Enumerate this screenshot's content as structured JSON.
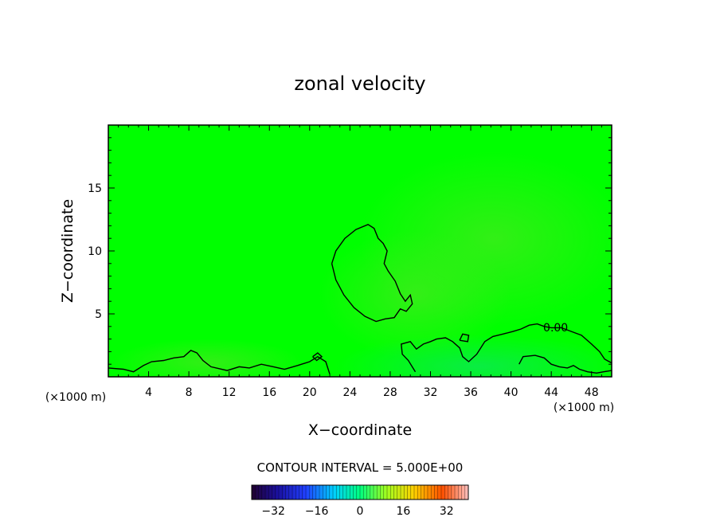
{
  "chart_data": {
    "type": "heatmap",
    "title": "zonal velocity",
    "xlabel": "X−coordinate",
    "ylabel": "Z−coordinate",
    "x_units_left": "(×1000 m)",
    "x_units_right": "(×1000 m)",
    "xlim": [
      0,
      50
    ],
    "ylim": [
      0,
      20
    ],
    "x_ticks": [
      4,
      8,
      12,
      16,
      20,
      24,
      28,
      32,
      36,
      40,
      44,
      48
    ],
    "y_ticks": [
      5,
      10,
      15
    ],
    "x_tick_labels": [
      "4",
      "8",
      "12",
      "16",
      "20",
      "24",
      "28",
      "32",
      "36",
      "40",
      "44",
      "48"
    ],
    "y_tick_labels": [
      "5",
      "10",
      "15"
    ],
    "contour_interval_text": "CONTOUR INTERVAL = 5.000E+00",
    "contour_label": "0.00",
    "background_color": "#00ff00",
    "colorbar": {
      "range": [
        -40,
        40
      ],
      "tick_values": [
        -32,
        -16,
        0,
        16,
        32
      ],
      "tick_labels": [
        "−32",
        "−16",
        "0",
        "16",
        "32"
      ]
    },
    "zero_contours": [
      {
        "name": "upper-blob",
        "points": [
          [
            22.2,
            9.0
          ],
          [
            22.6,
            10.0
          ],
          [
            23.5,
            11.0
          ],
          [
            24.6,
            11.7
          ],
          [
            25.8,
            12.1
          ],
          [
            26.4,
            11.8
          ],
          [
            26.8,
            11.0
          ],
          [
            27.3,
            10.6
          ],
          [
            27.7,
            10.0
          ],
          [
            27.4,
            9.0
          ],
          [
            27.8,
            8.4
          ],
          [
            28.5,
            7.6
          ],
          [
            29.0,
            6.6
          ],
          [
            29.5,
            6.0
          ],
          [
            30.0,
            6.5
          ],
          [
            30.2,
            5.8
          ],
          [
            29.6,
            5.2
          ],
          [
            29.0,
            5.4
          ],
          [
            28.4,
            4.7
          ],
          [
            27.5,
            4.6
          ],
          [
            26.6,
            4.4
          ],
          [
            25.5,
            4.8
          ],
          [
            24.4,
            5.5
          ],
          [
            23.4,
            6.5
          ],
          [
            22.6,
            7.7
          ],
          [
            22.2,
            9.0
          ]
        ]
      },
      {
        "name": "lower-boundary",
        "points": [
          [
            0.0,
            0.7
          ],
          [
            1.5,
            0.6
          ],
          [
            2.5,
            0.4
          ],
          [
            3.5,
            0.9
          ],
          [
            4.3,
            1.2
          ],
          [
            5.5,
            1.3
          ],
          [
            6.5,
            1.5
          ],
          [
            7.5,
            1.6
          ],
          [
            8.2,
            2.1
          ],
          [
            8.8,
            1.9
          ],
          [
            9.4,
            1.3
          ],
          [
            10.2,
            0.8
          ],
          [
            11.8,
            0.5
          ],
          [
            13.0,
            0.8
          ],
          [
            14.0,
            0.7
          ],
          [
            15.2,
            1.0
          ],
          [
            16.4,
            0.8
          ],
          [
            17.5,
            0.6
          ],
          [
            18.8,
            0.9
          ],
          [
            20.0,
            1.2
          ],
          [
            20.8,
            1.6
          ],
          [
            21.6,
            1.2
          ],
          [
            22.0,
            0.2
          ]
        ]
      },
      {
        "name": "right-boundary",
        "points": [
          [
            30.5,
            0.4
          ],
          [
            29.8,
            1.3
          ],
          [
            29.2,
            1.8
          ],
          [
            29.1,
            2.6
          ],
          [
            30.0,
            2.8
          ],
          [
            30.6,
            2.2
          ],
          [
            31.3,
            2.6
          ],
          [
            32.0,
            2.8
          ],
          [
            32.6,
            3.0
          ],
          [
            33.5,
            3.1
          ],
          [
            34.2,
            2.8
          ],
          [
            34.9,
            2.3
          ],
          [
            35.2,
            1.6
          ],
          [
            35.8,
            1.2
          ],
          [
            36.6,
            1.8
          ],
          [
            37.4,
            2.8
          ],
          [
            38.2,
            3.2
          ],
          [
            39.2,
            3.4
          ],
          [
            40.2,
            3.6
          ],
          [
            41.0,
            3.8
          ],
          [
            41.8,
            4.1
          ],
          [
            42.6,
            4.2
          ],
          [
            43.3,
            4.0
          ],
          [
            44.0,
            3.9
          ],
          [
            45.0,
            3.9
          ],
          [
            46.0,
            3.6
          ],
          [
            47.0,
            3.3
          ],
          [
            48.0,
            2.6
          ],
          [
            48.8,
            2.0
          ],
          [
            49.3,
            1.4
          ],
          [
            50.0,
            1.1
          ]
        ]
      },
      {
        "name": "bottom-right-loops",
        "points": [
          [
            40.8,
            1.0
          ],
          [
            41.2,
            1.6
          ],
          [
            42.4,
            1.7
          ],
          [
            43.3,
            1.5
          ],
          [
            44.0,
            1.0
          ],
          [
            44.8,
            0.8
          ],
          [
            45.6,
            0.7
          ],
          [
            46.2,
            0.9
          ],
          [
            46.8,
            0.6
          ],
          [
            47.6,
            0.4
          ],
          [
            48.5,
            0.3
          ],
          [
            49.2,
            0.4
          ],
          [
            50.0,
            0.5
          ]
        ]
      },
      {
        "name": "small-loop-33",
        "points": [
          [
            34.9,
            2.9
          ],
          [
            35.2,
            3.4
          ],
          [
            35.8,
            3.3
          ],
          [
            35.7,
            2.8
          ],
          [
            34.9,
            2.9
          ]
        ]
      },
      {
        "name": "small-loop-20",
        "points": [
          [
            20.3,
            1.6
          ],
          [
            20.8,
            1.9
          ],
          [
            21.2,
            1.6
          ],
          [
            20.7,
            1.3
          ],
          [
            20.3,
            1.6
          ]
        ]
      }
    ]
  },
  "colors": {
    "field_base": "#00ff00",
    "field_tint": "#22f018",
    "field_low_right": "#18e85a",
    "contour": "#000000",
    "axis": "#000000"
  }
}
